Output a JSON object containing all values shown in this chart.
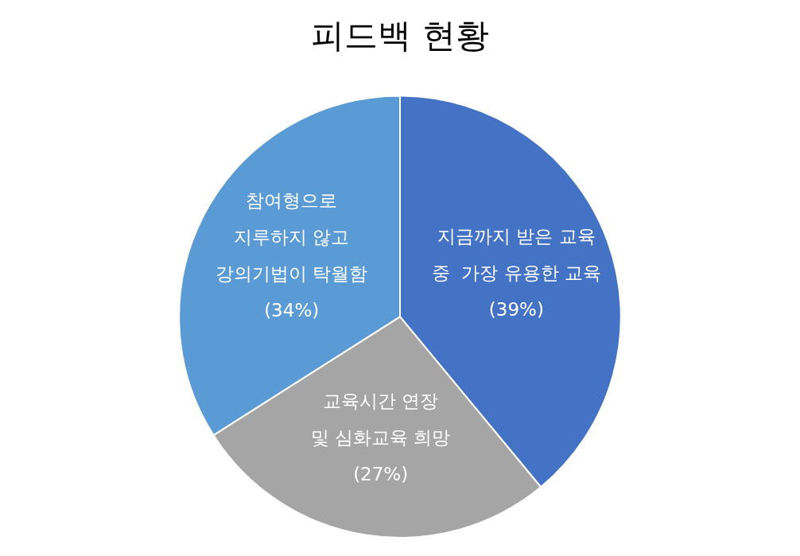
{
  "chart_data": {
    "type": "pie",
    "title": "피드백 현황",
    "categories": [
      "지금까지 받은 교육\n중  가장 유용한 교육",
      "교육시간 연장\n및 심화교육 희망",
      "참여형으로\n지루하지 않고\n강의기법이 탁월함"
    ],
    "values": [
      39,
      27,
      34
    ],
    "colors": [
      "#4472c4",
      "#a5a5a5",
      "#5b9bd5"
    ],
    "value_labels": [
      "(39%)",
      "(27%)",
      "(34%)"
    ]
  }
}
